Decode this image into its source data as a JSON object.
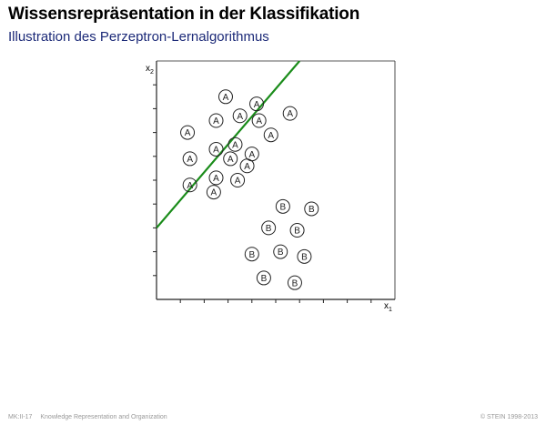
{
  "title": "Wissensrepräsentation in der Klassifikation",
  "subtitle": "Illustration des Perzeptron-Lernalgorithmus",
  "footer": {
    "course": "MK:II-17",
    "topic": "Knowledge Representation and Organization",
    "copyright": "© STEIN 1998-2013"
  },
  "chart_data": {
    "type": "scatter",
    "xlabel": "x1",
    "ylabel": "x2",
    "xlim": [
      0,
      10
    ],
    "ylim": [
      0,
      10
    ],
    "grid": false,
    "colors": {
      "line": "#1a8c1a",
      "point_stroke": "#222222"
    },
    "separator": {
      "x": [
        0,
        6.0
      ],
      "y": [
        3.0,
        10.0
      ]
    },
    "series": [
      {
        "name": "A",
        "points": [
          [
            2.9,
            8.5
          ],
          [
            4.2,
            8.2
          ],
          [
            2.5,
            7.5
          ],
          [
            3.5,
            7.7
          ],
          [
            4.3,
            7.5
          ],
          [
            5.6,
            7.8
          ],
          [
            1.3,
            7.0
          ],
          [
            3.3,
            6.5
          ],
          [
            4.8,
            6.9
          ],
          [
            2.5,
            6.3
          ],
          [
            4.0,
            6.1
          ],
          [
            1.4,
            5.9
          ],
          [
            3.1,
            5.9
          ],
          [
            3.8,
            5.6
          ],
          [
            2.5,
            5.1
          ],
          [
            3.4,
            5.0
          ],
          [
            1.4,
            4.8
          ],
          [
            2.4,
            4.5
          ]
        ]
      },
      {
        "name": "B",
        "points": [
          [
            5.3,
            3.9
          ],
          [
            6.5,
            3.8
          ],
          [
            4.7,
            3.0
          ],
          [
            5.9,
            2.9
          ],
          [
            4.0,
            1.9
          ],
          [
            5.2,
            2.0
          ],
          [
            6.2,
            1.8
          ],
          [
            4.5,
            0.9
          ],
          [
            5.8,
            0.7
          ]
        ]
      }
    ]
  }
}
